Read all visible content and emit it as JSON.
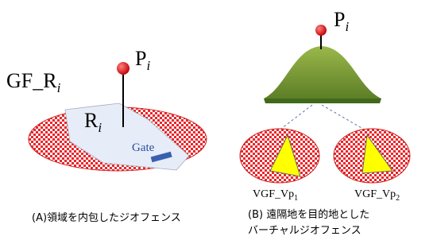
{
  "panel_a": {
    "geofence_label": {
      "base": "GF_R",
      "sub": "i"
    },
    "point_label": {
      "base": "P",
      "sub": "i"
    },
    "region_label": {
      "base": "R",
      "sub": "i"
    },
    "gate_label": "Gate",
    "caption": "(A)領域を内包したジオフェンス"
  },
  "panel_b": {
    "point_label": {
      "base": "P",
      "sub": "i"
    },
    "fences": [
      {
        "base": "VGF_Vp",
        "sub": "1"
      },
      {
        "base": "VGF_Vp",
        "sub": "2"
      }
    ],
    "caption_lines": [
      "(B) 遠隔地を目的地とした",
      "バーチャルジオフェンス"
    ]
  }
}
